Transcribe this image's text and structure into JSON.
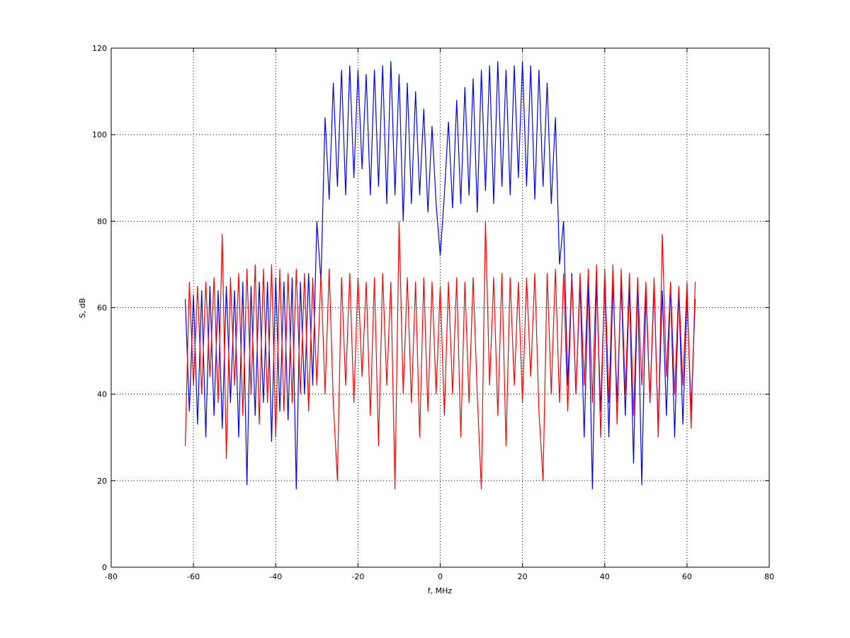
{
  "chart_data": {
    "type": "line",
    "xlabel": "f, MHz",
    "ylabel": "S, dB",
    "xlim": [
      -80,
      80
    ],
    "ylim": [
      0,
      120
    ],
    "xticks": [
      -80,
      -60,
      -40,
      -20,
      0,
      20,
      40,
      60,
      80
    ],
    "yticks": [
      0,
      20,
      40,
      60,
      80,
      100,
      120
    ],
    "grid": true,
    "x": [
      -62,
      -61,
      -60,
      -59,
      -58,
      -57,
      -56,
      -55,
      -54,
      -53,
      -52,
      -51,
      -50,
      -49,
      -48,
      -47,
      -46,
      -45,
      -44,
      -43,
      -42,
      -41,
      -40,
      -39,
      -38,
      -37,
      -36,
      -35,
      -34,
      -33,
      -32,
      -31,
      -30,
      -29,
      -28,
      -27,
      -26,
      -25,
      -24,
      -23,
      -22,
      -21,
      -20,
      -19,
      -18,
      -17,
      -16,
      -15,
      -14,
      -13,
      -12,
      -11,
      -10,
      -9,
      -8,
      -7,
      -6,
      -5,
      -4,
      -3,
      -2,
      -1,
      0,
      1,
      2,
      3,
      4,
      5,
      6,
      7,
      8,
      9,
      10,
      11,
      12,
      13,
      14,
      15,
      16,
      17,
      18,
      19,
      20,
      21,
      22,
      23,
      24,
      25,
      26,
      27,
      28,
      29,
      30,
      31,
      32,
      33,
      34,
      35,
      36,
      37,
      38,
      39,
      40,
      41,
      42,
      43,
      44,
      45,
      46,
      47,
      48,
      49,
      50,
      51,
      52,
      53,
      54,
      55,
      56,
      57,
      58,
      59,
      60,
      61,
      62
    ],
    "series": [
      {
        "color": "#0000ff",
        "values": [
          62,
          36,
          63,
          33,
          64,
          30,
          65,
          35,
          64,
          32,
          65,
          38,
          64,
          30,
          66,
          19,
          65,
          35,
          66,
          38,
          66,
          29,
          67,
          36,
          66,
          34,
          67,
          18,
          66,
          40,
          68,
          42,
          80,
          66,
          104,
          85,
          112,
          88,
          115,
          86,
          116,
          90,
          115,
          92,
          114,
          86,
          115,
          88,
          116,
          84,
          117,
          86,
          114,
          80,
          112,
          84,
          110,
          86,
          106,
          82,
          102,
          84,
          72,
          86,
          103,
          83,
          108,
          84,
          111,
          86,
          113,
          82,
          115,
          87,
          116,
          84,
          117,
          88,
          115,
          86,
          116,
          90,
          117,
          88,
          116,
          85,
          115,
          88,
          112,
          84,
          104,
          70,
          80,
          42,
          68,
          40,
          66,
          30,
          66,
          18,
          66,
          36,
          67,
          30,
          66,
          38,
          66,
          35,
          65,
          24,
          66,
          19,
          64,
          38,
          65,
          32,
          64,
          35,
          65,
          30,
          64,
          33,
          63,
          36,
          62
        ]
      },
      {
        "color": "#ff0000",
        "values": [
          28,
          66,
          42,
          65,
          40,
          66,
          44,
          67,
          38,
          77,
          25,
          67,
          42,
          68,
          35,
          69,
          40,
          70,
          33,
          69,
          38,
          70,
          30,
          69,
          36,
          68,
          38,
          69,
          40,
          68,
          36,
          67,
          42,
          68,
          40,
          69,
          38,
          20,
          67,
          42,
          68,
          38,
          67,
          44,
          66,
          35,
          67,
          28,
          68,
          42,
          66,
          18,
          80,
          40,
          67,
          38,
          66,
          30,
          67,
          36,
          66,
          40,
          65,
          35,
          66,
          40,
          67,
          30,
          66,
          38,
          67,
          40,
          18,
          80,
          42,
          67,
          35,
          68,
          28,
          67,
          42,
          66,
          38,
          67,
          44,
          68,
          36,
          20,
          68,
          40,
          69,
          38,
          68,
          36,
          67,
          40,
          68,
          42,
          69,
          38,
          70,
          30,
          69,
          38,
          70,
          33,
          69,
          40,
          68,
          35,
          67,
          42,
          66,
          38,
          67,
          30,
          77,
          44,
          66,
          40,
          65,
          42,
          66,
          32,
          66
        ]
      }
    ]
  }
}
